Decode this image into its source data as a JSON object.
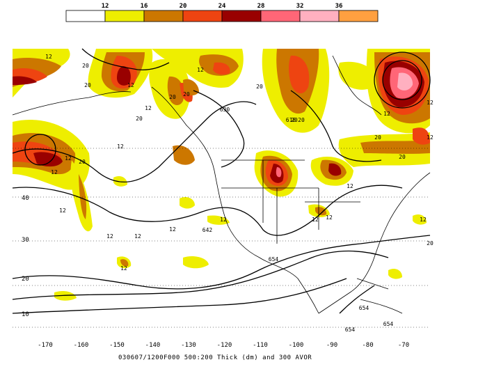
{
  "colorbar": {
    "stops": [
      {
        "label": "12",
        "color": "#ffffff"
      },
      {
        "label": "16",
        "color": "#eeee00"
      },
      {
        "label": "20",
        "color": "#cc7700"
      },
      {
        "label": "24",
        "color": "#ee4411"
      },
      {
        "label": "28",
        "color": "#990000"
      },
      {
        "label": "32",
        "color": "#ff6677"
      },
      {
        "label": "36",
        "color": "#ffb0c0"
      },
      {
        "label": "",
        "color": "#ffa040"
      }
    ]
  },
  "map": {
    "vorticity_labels": [
      "12",
      "20",
      "12",
      "20",
      "20",
      "12",
      "12",
      "20",
      "20",
      "12",
      "20",
      "20",
      "20",
      "12",
      "12",
      "12",
      "12",
      "20",
      "12",
      "12",
      "12",
      "12",
      "12",
      "12",
      "12",
      "12",
      "12",
      "20",
      "20",
      "12",
      "20",
      "12"
    ],
    "thickness_labels": [
      "630",
      "618",
      "642",
      "654",
      "654",
      "654",
      "654"
    ],
    "lon_ticks": [
      "-170",
      "-160",
      "-150",
      "-140",
      "-130",
      "-120",
      "-110",
      "-100",
      "-90",
      "-80",
      "-70"
    ],
    "lat_ticks": [
      "40",
      "30",
      "20",
      "10"
    ]
  },
  "caption": "030607/1200F000 500:200 Thick (dm) and 300 AVOR"
}
